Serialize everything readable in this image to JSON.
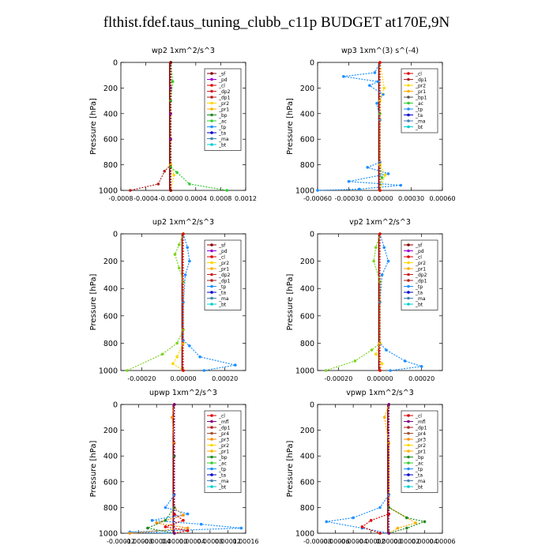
{
  "title": "flthist.fdef.taus_tuning_clubb_c11p  BUDGET at170E,9N",
  "colors": {
    "sf": "#8b0000",
    "pd": "#9400d3",
    "cl": "#e00000",
    "dp2": "#cc2222",
    "dp1": "#b22222",
    "pr2": "#ffd700",
    "pr1": "#ffb000",
    "pr3": "#ff8c00",
    "pr4": "#a0522d",
    "bp": "#228b22",
    "ac": "#32cd32",
    "tp": "#1e90ff",
    "ta": "#0000cd",
    "ma": "#4682b4",
    "bt": "#00ced1",
    "mfl": "#800080"
  },
  "chart_data": [
    {
      "type": "line",
      "title": "wp2   1xm^2/s^3",
      "ylabel": "Pressure [hPa]",
      "ylim": [
        1000,
        0
      ],
      "xlim": [
        -0.0008,
        0.0012
      ],
      "xticks": [
        -0.0008,
        -0.0004,
        0,
        0.0004,
        0.0008,
        0.0012
      ],
      "xtick_labels": [
        "-0.0008",
        "-0.0004",
        "-0.0000",
        "0.0004",
        "0.0008",
        "0.0012"
      ],
      "yticks": [
        0,
        200,
        400,
        600,
        800,
        1000
      ],
      "legend": [
        "_sf",
        "_pd",
        "_cl",
        "_dp2",
        "_dp1",
        "_pr2",
        "_pr1",
        "_bp",
        "_ac",
        "_tp",
        "_ta",
        "_ma",
        "_bt"
      ],
      "series": [
        {
          "name": "_pd",
          "color": "#9400d3",
          "values": [
            [
              0,
              0
            ],
            [
              0,
              200
            ],
            [
              0,
              400
            ],
            [
              0,
              600
            ],
            [
              0,
              800
            ],
            [
              0,
              1000
            ]
          ]
        },
        {
          "name": "_dp1",
          "color": "#b22222",
          "values": [
            [
              0,
              0
            ],
            [
              0,
              800
            ],
            [
              -0.0001,
              850
            ],
            [
              -0.0002,
              950
            ],
            [
              -0.00065,
              1000
            ]
          ]
        },
        {
          "name": "_pr2",
          "color": "#ffd700",
          "values": [
            [
              0,
              0
            ],
            [
              3e-05,
              150
            ],
            [
              0,
              300
            ],
            [
              0,
              800
            ],
            [
              5e-05,
              880
            ],
            [
              0,
              1000
            ]
          ]
        },
        {
          "name": "_ac",
          "color": "#32cd32",
          "values": [
            [
              0,
              0
            ],
            [
              3e-05,
              150
            ],
            [
              0,
              300
            ],
            [
              0,
              820
            ],
            [
              0.0001,
              860
            ],
            [
              0.0003,
              950
            ],
            [
              0.0009,
              1000
            ]
          ]
        },
        {
          "name": "_sf",
          "color": "#8b0000",
          "values": [
            [
              0,
              0
            ],
            [
              0,
              1000
            ]
          ]
        }
      ]
    },
    {
      "type": "line",
      "title": "wp3   1xm^(3) s^(-4)",
      "ylabel": "Pressure [hPa]",
      "ylim": [
        1000,
        0
      ],
      "xlim": [
        -0.0006,
        0.0006
      ],
      "xticks": [
        -0.0006,
        -0.0003,
        0,
        0.0003,
        0.0006
      ],
      "xtick_labels": [
        "-0.00060",
        "-0.00030",
        "0.00000",
        "0.00030",
        "0.00060"
      ],
      "yticks": [
        0,
        200,
        400,
        600,
        800,
        1000
      ],
      "legend": [
        "_cl",
        "_dp1",
        "_pr2",
        "_pr1",
        "_bp1",
        "_ac",
        "_tp",
        "_ta",
        "_ma",
        "_bt"
      ],
      "series": [
        {
          "name": "_tp",
          "color": "#1e90ff",
          "values": [
            [
              0,
              0
            ],
            [
              -5e-05,
              80
            ],
            [
              -0.00035,
              110
            ],
            [
              -2e-05,
              150
            ],
            [
              -0.0001,
              180
            ],
            [
              3e-05,
              250
            ],
            [
              -3e-05,
              320
            ],
            [
              0,
              450
            ],
            [
              0,
              780
            ],
            [
              -0.00012,
              820
            ],
            [
              8e-05,
              870
            ],
            [
              -0.0003,
              930
            ],
            [
              0.0002,
              960
            ],
            [
              -0.0002,
              990
            ],
            [
              -0.0006,
              1000
            ]
          ]
        },
        {
          "name": "_ac",
          "color": "#32cd32",
          "values": [
            [
              0,
              0
            ],
            [
              0,
              400
            ],
            [
              0,
              800
            ],
            [
              2e-05,
              900
            ],
            [
              0,
              1000
            ]
          ]
        },
        {
          "name": "_pr2",
          "color": "#ffd700",
          "values": [
            [
              0,
              0
            ],
            [
              4e-05,
              200
            ],
            [
              0,
              300
            ],
            [
              0,
              800
            ],
            [
              5e-05,
              880
            ],
            [
              0,
              1000
            ]
          ]
        },
        {
          "name": "_cl",
          "color": "#e00000",
          "values": [
            [
              0,
              0
            ],
            [
              0,
              1000
            ]
          ]
        }
      ]
    },
    {
      "type": "line",
      "title": "up2   1xm^2/s^3",
      "ylabel": "Pressure [hPa]",
      "ylim": [
        1000,
        0
      ],
      "xlim": [
        -0.0003,
        0.0003
      ],
      "xticks": [
        -0.0002,
        0,
        0.0002
      ],
      "xtick_labels": [
        "-0.00020",
        "0.00000",
        "0.00020"
      ],
      "yticks": [
        0,
        200,
        400,
        600,
        800,
        1000
      ],
      "legend": [
        "_sf",
        "_pd",
        "_cl",
        "_pr2",
        "_pr1",
        "_dp2",
        "_dp1",
        "_tp",
        "_ta",
        "_ma",
        "_bt"
      ],
      "series": [
        {
          "name": "_tp",
          "color": "#1e90ff",
          "values": [
            [
              0,
              0
            ],
            [
              2e-05,
              100
            ],
            [
              3e-05,
              200
            ],
            [
              1e-05,
              300
            ],
            [
              0,
              500
            ],
            [
              0,
              780
            ],
            [
              3e-05,
              820
            ],
            [
              8e-05,
              900
            ],
            [
              0.00025,
              960
            ],
            [
              0.0001,
              1000
            ]
          ]
        },
        {
          "name": "_dp1",
          "color": "#7ed321",
          "values": [
            [
              0,
              0
            ],
            [
              -2e-05,
              80
            ],
            [
              -4e-05,
              150
            ],
            [
              -2e-05,
              250
            ],
            [
              0,
              350
            ],
            [
              0,
              700
            ],
            [
              -3e-05,
              800
            ],
            [
              -0.0001,
              880
            ],
            [
              -0.00027,
              1000
            ]
          ]
        },
        {
          "name": "_pr2",
          "color": "#ffd700",
          "values": [
            [
              0,
              0
            ],
            [
              0,
              800
            ],
            [
              -3e-05,
              900
            ],
            [
              -5e-05,
              950
            ],
            [
              0,
              1000
            ]
          ]
        },
        {
          "name": "_cl",
          "color": "#e00000",
          "values": [
            [
              0,
              0
            ],
            [
              0,
              1000
            ]
          ]
        }
      ]
    },
    {
      "type": "line",
      "title": "vp2   1xm^2/s^3",
      "ylabel": "Pressure [hPa]",
      "ylim": [
        1000,
        0
      ],
      "xlim": [
        -0.0003,
        0.0003
      ],
      "xticks": [
        -0.0002,
        0,
        0.0002
      ],
      "xtick_labels": [
        "-0.00020",
        "0.00000",
        "0.00020"
      ],
      "yticks": [
        0,
        200,
        400,
        600,
        800,
        1000
      ],
      "legend": [
        "_sf",
        "_pd",
        "_cl",
        "_pr2",
        "_pr1",
        "_dp2",
        "_dp1",
        "_tp",
        "_ta",
        "_ma",
        "_bt"
      ],
      "series": [
        {
          "name": "_tp",
          "color": "#1e90ff",
          "values": [
            [
              0,
              0
            ],
            [
              2e-05,
              100
            ],
            [
              4e-05,
              200
            ],
            [
              1e-05,
              300
            ],
            [
              0,
              500
            ],
            [
              0,
              800
            ],
            [
              3e-05,
              850
            ],
            [
              0.00012,
              930
            ],
            [
              0.0002,
              970
            ],
            [
              5e-05,
              1000
            ]
          ]
        },
        {
          "name": "_dp1",
          "color": "#7ed321",
          "values": [
            [
              0,
              0
            ],
            [
              -2e-05,
              100
            ],
            [
              -3e-05,
              200
            ],
            [
              0,
              350
            ],
            [
              0,
              800
            ],
            [
              -4e-05,
              850
            ],
            [
              -0.00012,
              930
            ],
            [
              -0.00026,
              1000
            ]
          ]
        },
        {
          "name": "_pr2",
          "color": "#ffd700",
          "values": [
            [
              0,
              0
            ],
            [
              0,
              800
            ],
            [
              -2e-05,
              880
            ],
            [
              1e-05,
              950
            ],
            [
              0,
              1000
            ]
          ]
        },
        {
          "name": "_cl",
          "color": "#e00000",
          "values": [
            [
              0,
              0
            ],
            [
              0,
              1000
            ]
          ]
        }
      ]
    },
    {
      "type": "line",
      "title": "upwp   1xm^2/s^3",
      "ylabel": "Pressure [hPa]",
      "ylim": [
        1000,
        0
      ],
      "xlim": [
        -0.00012,
        0.00016
      ],
      "xticks": [
        -0.00012,
        -8e-05,
        -4e-05,
        0,
        4e-05,
        8e-05,
        0.00012,
        0.00016
      ],
      "xtick_labels": [
        "-0.00012",
        "-0.00008",
        "-0.00004",
        "0.00000",
        "0.00004",
        "0.00008",
        "0.00012",
        "0.00016"
      ],
      "yticks": [
        0,
        200,
        400,
        600,
        800,
        1000
      ],
      "legend": [
        "_cl",
        "_mfl",
        "_dp1",
        "_pr4",
        "_pr3",
        "_pr2",
        "_pr1",
        "_bp",
        "_ac",
        "_tp",
        "_ta",
        "_ma",
        "_bt"
      ],
      "series": [
        {
          "name": "_tp",
          "color": "#1e90ff",
          "values": [
            [
              0,
              0
            ],
            [
              0,
              700
            ],
            [
              -2e-05,
              800
            ],
            [
              3e-05,
              850
            ],
            [
              -5e-05,
              900
            ],
            [
              6e-05,
              930
            ],
            [
              0.00015,
              960
            ],
            [
              -0.0001,
              990
            ],
            [
              0,
              1000
            ]
          ]
        },
        {
          "name": "_pr3",
          "color": "#ff8c00",
          "values": [
            [
              0,
              0
            ],
            [
              -5e-06,
              100
            ],
            [
              0,
              300
            ],
            [
              0,
              800
            ],
            [
              2e-05,
              860
            ],
            [
              -4e-05,
              920
            ],
            [
              3e-05,
              960
            ],
            [
              -0.0001,
              1000
            ]
          ]
        },
        {
          "name": "_bp",
          "color": "#228b22",
          "values": [
            [
              0,
              0
            ],
            [
              0,
              400
            ],
            [
              0,
              800
            ],
            [
              -2e-05,
              900
            ],
            [
              -6e-05,
              960
            ],
            [
              0,
              1000
            ]
          ]
        },
        {
          "name": "_dp1",
          "color": "#e00000",
          "values": [
            [
              0,
              0
            ],
            [
              0,
              850
            ],
            [
              2e-05,
              900
            ],
            [
              -2e-05,
              950
            ],
            [
              3e-05,
              980
            ],
            [
              0,
              1000
            ]
          ]
        },
        {
          "name": "_mfl",
          "color": "#800080",
          "values": [
            [
              0,
              0
            ],
            [
              0,
              1000
            ]
          ]
        }
      ]
    },
    {
      "type": "line",
      "title": "vpwp   1xm^2/s^3",
      "ylabel": "Pressure [hPa]",
      "ylim": [
        1000,
        0
      ],
      "xlim": [
        -8e-05,
        6e-05
      ],
      "xticks": [
        -8e-05,
        -6e-05,
        -4e-05,
        -2e-05,
        0,
        2e-05,
        4e-05,
        6e-05
      ],
      "xtick_labels": [
        "-0.00008",
        "-0.00006",
        "-0.00004",
        "-0.00002",
        "0.00000",
        "0.00002",
        "0.00004",
        "0.00006"
      ],
      "yticks": [
        0,
        200,
        400,
        600,
        800,
        1000
      ],
      "legend": [
        "_cl",
        "_mfl",
        "_dp1",
        "_pr4",
        "_pr3",
        "_pr2",
        "_pr1",
        "_bp",
        "_ac",
        "_tp",
        "_ta",
        "_ma",
        "_bt"
      ],
      "series": [
        {
          "name": "_tp",
          "color": "#1e90ff",
          "values": [
            [
              0,
              0
            ],
            [
              0,
              700
            ],
            [
              -1e-05,
              800
            ],
            [
              -4e-05,
              880
            ],
            [
              -7e-05,
              910
            ],
            [
              -3e-05,
              960
            ],
            [
              0,
              1000
            ]
          ]
        },
        {
          "name": "_pr3",
          "color": "#ffb000",
          "values": [
            [
              0,
              0
            ],
            [
              -5e-06,
              100
            ],
            [
              0,
              300
            ],
            [
              0,
              800
            ],
            [
              2e-05,
              880
            ],
            [
              3e-05,
              920
            ],
            [
              1e-05,
              960
            ],
            [
              0,
              1000
            ]
          ]
        },
        {
          "name": "_bp",
          "color": "#228b22",
          "values": [
            [
              0,
              0
            ],
            [
              0,
              800
            ],
            [
              2e-05,
              880
            ],
            [
              4e-05,
              910
            ],
            [
              2e-05,
              960
            ],
            [
              0,
              1000
            ]
          ]
        },
        {
          "name": "_dp1",
          "color": "#e00000",
          "values": [
            [
              0,
              0
            ],
            [
              0,
              850
            ],
            [
              -2e-05,
              900
            ],
            [
              -3e-05,
              950
            ],
            [
              -1e-05,
              1000
            ]
          ]
        },
        {
          "name": "_mfl",
          "color": "#800080",
          "values": [
            [
              0,
              0
            ],
            [
              0,
              1000
            ]
          ]
        }
      ]
    }
  ]
}
